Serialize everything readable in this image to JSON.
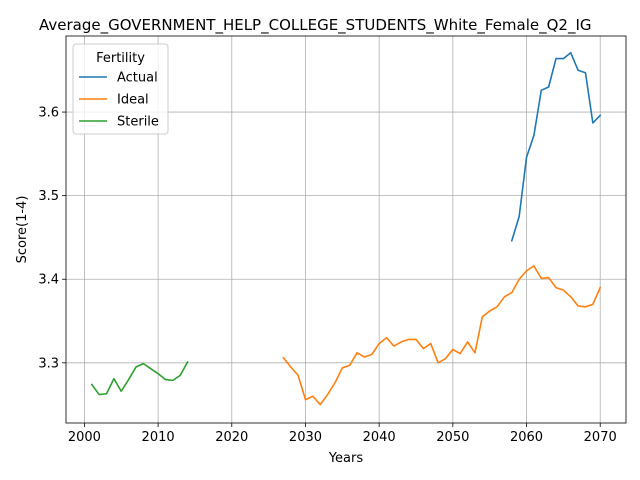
{
  "chart_data": {
    "type": "line",
    "title": "Average_GOVERNMENT_HELP_COLLEGE_STUDENTS_White_Female_Q2_IG",
    "xlabel": "Years",
    "ylabel": "Score(1-4)",
    "xlim": [
      1997.5,
      2073.5
    ],
    "ylim": [
      3.228,
      3.691
    ],
    "xticks": [
      2000,
      2010,
      2020,
      2030,
      2040,
      2050,
      2060,
      2070
    ],
    "xtick_labels": [
      "2000",
      "2010",
      "2020",
      "2030",
      "2040",
      "2050",
      "2060",
      "2070"
    ],
    "yticks": [
      3.3,
      3.4,
      3.5,
      3.6
    ],
    "ytick_labels": [
      "3.3",
      "3.4",
      "3.5",
      "3.6"
    ],
    "grid": true,
    "legend": {
      "title": "Fertility",
      "position": "top-left"
    },
    "series": [
      {
        "name": "Actual",
        "color": "#1f77b4",
        "x": [
          2058,
          2059,
          2060,
          2061,
          2062,
          2063,
          2064,
          2065,
          2066,
          2067,
          2068,
          2069,
          2070
        ],
        "y": [
          3.446,
          3.475,
          3.546,
          3.572,
          3.626,
          3.63,
          3.664,
          3.664,
          3.671,
          3.65,
          3.647,
          3.587,
          3.596
        ]
      },
      {
        "name": "Ideal",
        "color": "#ff7f0e",
        "x": [
          2027,
          2028,
          2029,
          2030,
          2031,
          2032,
          2033,
          2034,
          2035,
          2036,
          2037,
          2038,
          2039,
          2040,
          2041,
          2042,
          2043,
          2044,
          2045,
          2046,
          2047,
          2048,
          2049,
          2050,
          2051,
          2052,
          2053,
          2054,
          2055,
          2056,
          2057,
          2058,
          2059,
          2060,
          2061,
          2062,
          2063,
          2064,
          2065,
          2066,
          2067,
          2068,
          2069,
          2070
        ],
        "y": [
          3.306,
          3.295,
          3.285,
          3.256,
          3.26,
          3.25,
          3.262,
          3.276,
          3.294,
          3.297,
          3.312,
          3.307,
          3.31,
          3.323,
          3.33,
          3.32,
          3.325,
          3.328,
          3.328,
          3.317,
          3.323,
          3.3,
          3.305,
          3.316,
          3.311,
          3.325,
          3.312,
          3.355,
          3.362,
          3.367,
          3.379,
          3.384,
          3.4,
          3.41,
          3.416,
          3.401,
          3.402,
          3.39,
          3.387,
          3.379,
          3.368,
          3.367,
          3.37,
          3.39
        ]
      },
      {
        "name": "Sterile",
        "color": "#2ca02c",
        "x": [
          2001,
          2002,
          2003,
          2004,
          2005,
          2006,
          2007,
          2008,
          2009,
          2010,
          2011,
          2012,
          2013,
          2014
        ],
        "y": [
          3.274,
          3.262,
          3.263,
          3.281,
          3.266,
          3.28,
          3.295,
          3.299,
          3.293,
          3.287,
          3.28,
          3.279,
          3.285,
          3.301
        ]
      }
    ]
  }
}
